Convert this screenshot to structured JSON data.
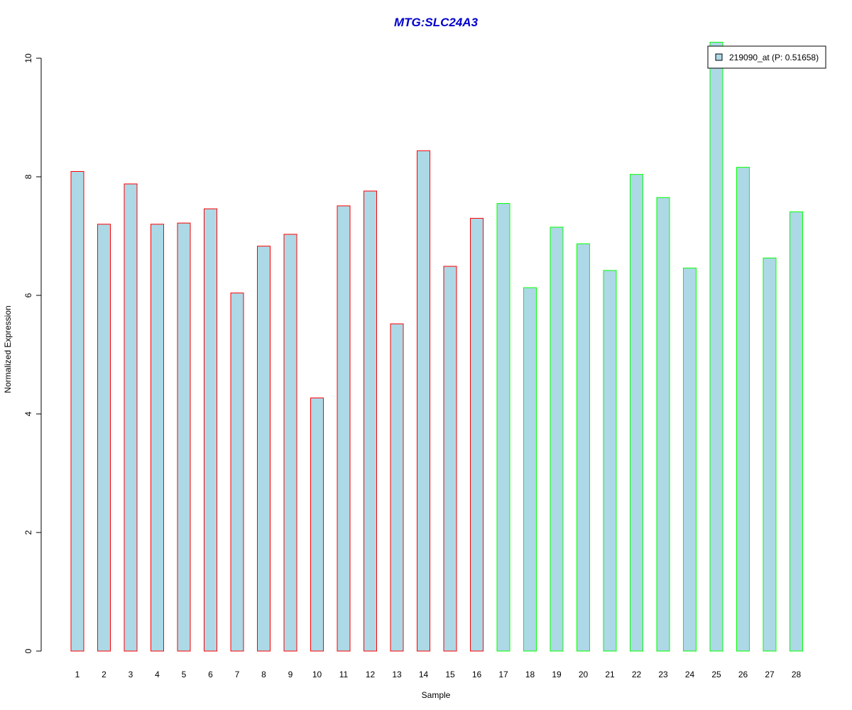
{
  "chart_data": {
    "type": "bar",
    "title": "MTG:SLC24A3",
    "xlabel": "Sample",
    "ylabel": "Normalized Expression",
    "ylim": [
      0,
      10
    ],
    "yticks": [
      "0",
      "2",
      "4",
      "6",
      "8",
      "10"
    ],
    "categories": [
      "1",
      "2",
      "3",
      "4",
      "5",
      "6",
      "7",
      "8",
      "9",
      "10",
      "11",
      "12",
      "13",
      "14",
      "15",
      "16",
      "17",
      "18",
      "19",
      "20",
      "21",
      "22",
      "23",
      "24",
      "25",
      "26",
      "27",
      "28"
    ],
    "series": [
      {
        "name": "219090_at (P: 0.51658)",
        "values": [
          8.09,
          7.2,
          7.88,
          7.2,
          7.22,
          7.46,
          6.04,
          6.83,
          7.03,
          4.27,
          7.51,
          7.76,
          5.52,
          8.44,
          6.49,
          7.3,
          7.55,
          6.13,
          7.15,
          6.87,
          6.42,
          8.04,
          7.65,
          6.46,
          10.27,
          8.16,
          6.63,
          7.41
        ]
      }
    ],
    "fill_color": "#add8e6",
    "group_colors": [
      "#ff0000",
      "#00ff00"
    ],
    "group_sizes": [
      16,
      12
    ],
    "legend": {
      "label": "219090_at (P: 0.51658)",
      "position": "top-right"
    },
    "grid": false
  }
}
